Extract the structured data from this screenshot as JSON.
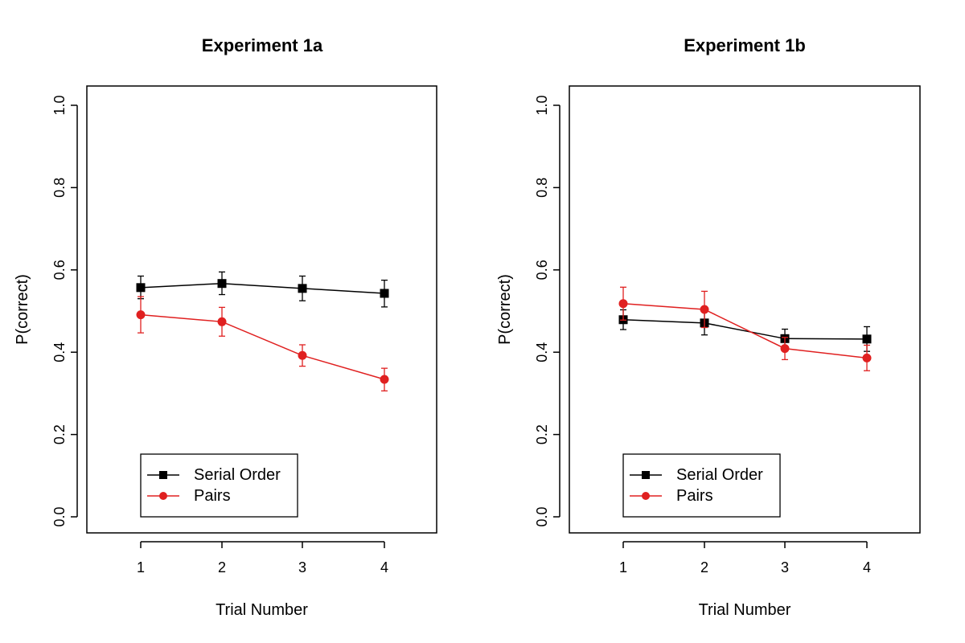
{
  "chart_data": [
    {
      "type": "line",
      "title": "Experiment 1a",
      "xlabel": "Trial Number",
      "ylabel": "P(correct)",
      "categories": [
        1,
        2,
        3,
        4
      ],
      "xticks": [
        "1",
        "2",
        "3",
        "4"
      ],
      "yticks": [
        "0.0",
        "0.2",
        "0.4",
        "0.6",
        "0.8",
        "1.0"
      ],
      "ylim": [
        0,
        1
      ],
      "grid": false,
      "legend_position": "bottom-left",
      "series": [
        {
          "name": "Serial Order",
          "color": "#000000",
          "marker": "square",
          "values": [
            0.557,
            0.567,
            0.555,
            0.543
          ],
          "err_low": [
            0.53,
            0.54,
            0.525,
            0.51
          ],
          "err_high": [
            0.585,
            0.595,
            0.585,
            0.575
          ]
        },
        {
          "name": "Pairs",
          "color": "#e02020",
          "marker": "circle",
          "values": [
            0.491,
            0.474,
            0.392,
            0.334
          ],
          "err_low": [
            0.447,
            0.439,
            0.366,
            0.306
          ],
          "err_high": [
            0.535,
            0.509,
            0.418,
            0.361
          ]
        }
      ]
    },
    {
      "type": "line",
      "title": "Experiment 1b",
      "xlabel": "Trial Number",
      "ylabel": "P(correct)",
      "categories": [
        1,
        2,
        3,
        4
      ],
      "xticks": [
        "1",
        "2",
        "3",
        "4"
      ],
      "yticks": [
        "0.0",
        "0.2",
        "0.4",
        "0.6",
        "0.8",
        "1.0"
      ],
      "ylim": [
        0,
        1
      ],
      "grid": false,
      "legend_position": "bottom-left",
      "series": [
        {
          "name": "Serial Order",
          "color": "#000000",
          "marker": "square",
          "values": [
            0.479,
            0.471,
            0.433,
            0.432
          ],
          "err_low": [
            0.455,
            0.442,
            0.41,
            0.402
          ],
          "err_high": [
            0.503,
            0.5,
            0.456,
            0.462
          ]
        },
        {
          "name": "Pairs",
          "color": "#e02020",
          "marker": "circle",
          "values": [
            0.518,
            0.504,
            0.409,
            0.386
          ],
          "err_low": [
            0.478,
            0.46,
            0.382,
            0.355
          ],
          "err_high": [
            0.558,
            0.548,
            0.436,
            0.417
          ]
        }
      ]
    }
  ]
}
